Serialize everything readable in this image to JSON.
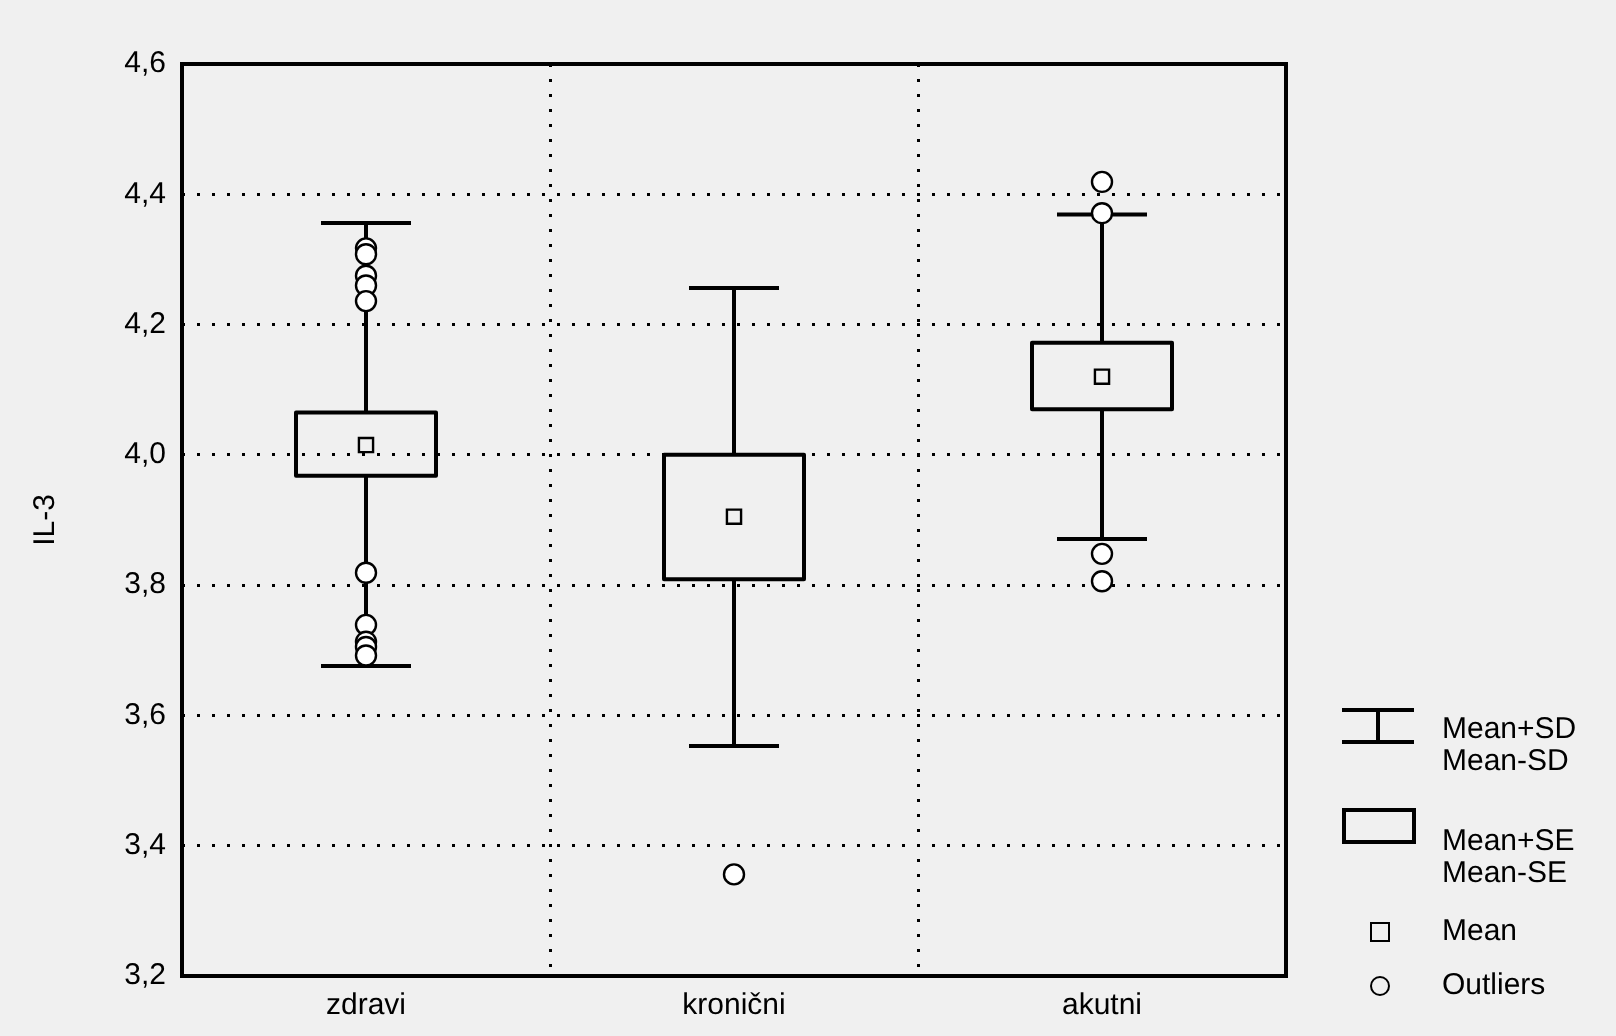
{
  "chart_data": {
    "type": "box",
    "ylabel": "IL-3",
    "categories": [
      "zdravi",
      "kronični",
      "akutni"
    ],
    "boxes": [
      {
        "low": 3.676,
        "q1": 3.968,
        "q3": 4.065,
        "high": 4.356,
        "mean": 4.015,
        "outliers": [
          4.317,
          4.308,
          4.275,
          4.26,
          4.236,
          3.819,
          3.739,
          3.713,
          3.705,
          3.692
        ]
      },
      {
        "low": 3.553,
        "q1": 3.809,
        "q3": 4.0,
        "high": 4.256,
        "mean": 3.905,
        "outliers": [
          3.356
        ]
      },
      {
        "low": 3.871,
        "q1": 4.07,
        "q3": 4.172,
        "high": 4.369,
        "mean": 4.12,
        "outliers": [
          4.419,
          4.371,
          3.848,
          3.806
        ]
      }
    ],
    "color": "#000000",
    "ylim": [
      3.2,
      4.6
    ],
    "yticks": [
      {
        "value": 3.2,
        "label": "3,2"
      },
      {
        "value": 3.4,
        "label": "3,4"
      },
      {
        "value": 3.6,
        "label": "3,6"
      },
      {
        "value": 3.8,
        "label": "3,8"
      },
      {
        "value": 4.0,
        "label": "4,0"
      },
      {
        "value": 4.2,
        "label": "4,2"
      },
      {
        "value": 4.4,
        "label": "4,4"
      },
      {
        "value": 4.6,
        "label": "4,6"
      }
    ],
    "grid": true,
    "marker": "square",
    "annotations": [
      "Mean+SD",
      "Mean-SD",
      "Mean+SE",
      "Mean-SE",
      "Mean",
      "Outliers"
    ]
  }
}
